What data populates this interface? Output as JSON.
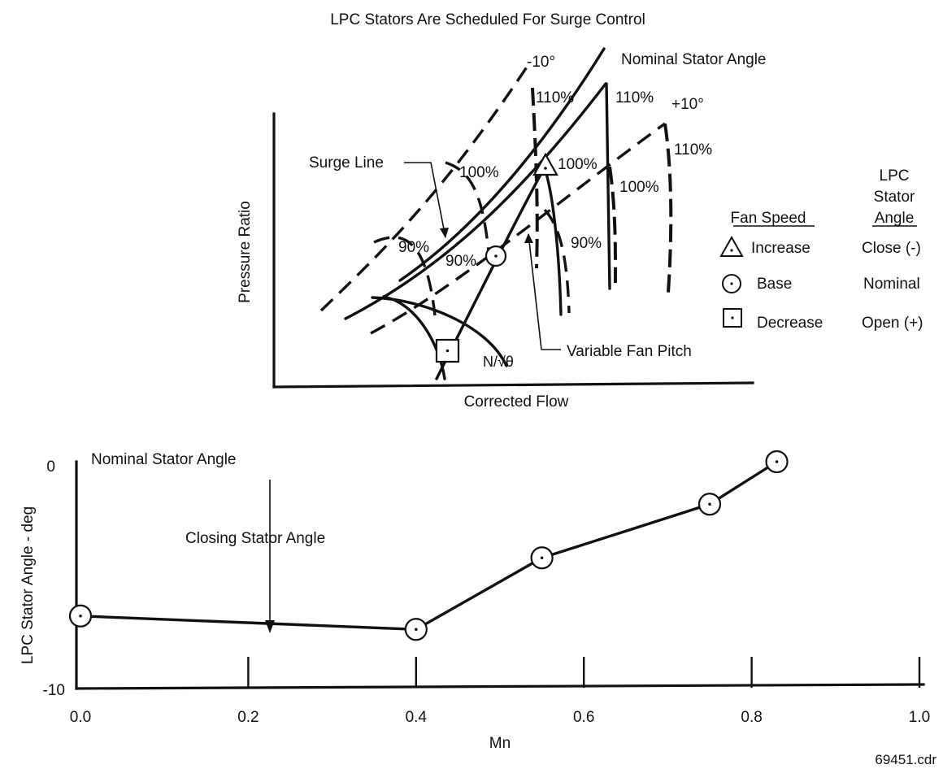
{
  "title": "LPC Stators Are Scheduled For Surge Control",
  "map_chart": {
    "xlabel": "Corrected Flow",
    "ylabel": "Pressure Ratio",
    "labels": {
      "minus10": "-10°",
      "nominal": "Nominal Stator Angle",
      "plus10": "+10°",
      "surge_line": "Surge Line",
      "variable_pitch": "Variable Fan Pitch",
      "speed_param": "N/√θ",
      "p110_a": "110%",
      "p110_b": "110%",
      "p110_c": "110%",
      "p100_a": "100%",
      "p100_b": "100%",
      "p100_c": "100%",
      "p90_a": "90%",
      "p90_b": "90%",
      "p90_c": "90%"
    }
  },
  "legend": {
    "header_fan": "Fan Speed",
    "header_stator": [
      "LPC",
      "Stator",
      "Angle"
    ],
    "rows": [
      {
        "marker": "triangle",
        "speed": "Increase",
        "angle": "Close (-)"
      },
      {
        "marker": "circle",
        "speed": "Base",
        "angle": "Nominal"
      },
      {
        "marker": "square",
        "speed": "Decrease",
        "angle": "Open (+)"
      }
    ]
  },
  "chart_data": {
    "type": "line",
    "xlabel": "Mn",
    "ylabel": "LPC Stator Angle - deg",
    "xlim": [
      0.0,
      1.0
    ],
    "ylim": [
      -10,
      0
    ],
    "x_ticks": [
      "0.0",
      "0.2",
      "0.4",
      "0.6",
      "0.8",
      "1.0"
    ],
    "y_ticks": [
      "0",
      "-10"
    ],
    "series": [
      {
        "x": [
          0.0,
          0.4,
          0.55,
          0.75,
          0.83
        ],
        "y": [
          -6.9,
          -7.5,
          -4.3,
          -1.9,
          0.0
        ]
      }
    ],
    "annotations": [
      "Nominal Stator Angle",
      "Closing Stator Angle"
    ]
  },
  "file_label": "69451.cdr"
}
